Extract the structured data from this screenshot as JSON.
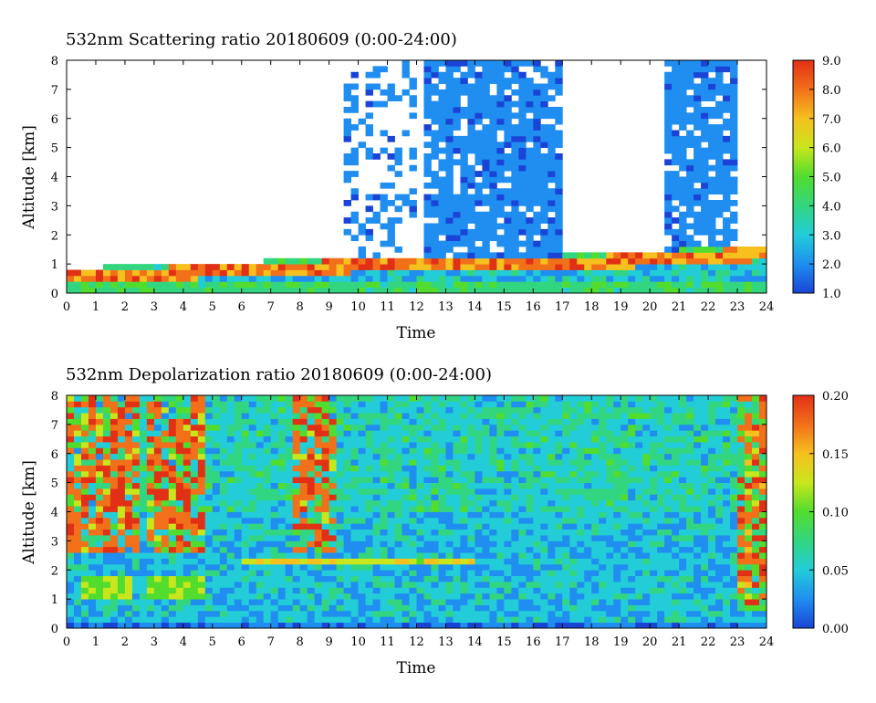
{
  "chart_data": [
    {
      "type": "heatmap",
      "title": "532nm Scattering ratio  20180609 (0:00-24:00)",
      "xlabel": "Time",
      "ylabel": "Altitude [km]",
      "xlim": [
        0,
        24
      ],
      "ylim": [
        0,
        8
      ],
      "xticks": [
        "0",
        "1",
        "2",
        "3",
        "4",
        "5",
        "6",
        "7",
        "8",
        "9",
        "10",
        "11",
        "12",
        "13",
        "14",
        "15",
        "16",
        "17",
        "18",
        "19",
        "20",
        "21",
        "22",
        "23",
        "24"
      ],
      "yticks": [
        "0",
        "1",
        "2",
        "3",
        "4",
        "5",
        "6",
        "7",
        "8"
      ],
      "colorbar": {
        "range": [
          1.0,
          9.0
        ],
        "ticks": [
          "1.0",
          "2.0",
          "3.0",
          "4.0",
          "5.0",
          "6.0",
          "7.0",
          "8.0",
          "9.0"
        ],
        "colormap": [
          "#1a44d6",
          "#1f8ef0",
          "#22cdd8",
          "#32d680",
          "#52dc2e",
          "#c8e61c",
          "#f6c01e",
          "#f2701a",
          "#e23016"
        ]
      },
      "features": {
        "no_data_color": "#ffffff",
        "low_layer_top_km": 1.0,
        "cloud_regions": [
          {
            "t": [
              12.2,
              17.0
            ],
            "alt": [
              0.6,
              8.0
            ]
          },
          {
            "t": [
              20.5,
              23.0
            ],
            "alt": [
              1.2,
              8.0
            ]
          }
        ]
      }
    },
    {
      "type": "heatmap",
      "title": "532nm Depolarization ratio  20180609 (0:00-24:00)",
      "xlabel": "Time",
      "ylabel": "Altitude [km]",
      "xlim": [
        0,
        24
      ],
      "ylim": [
        0,
        8
      ],
      "xticks": [
        "0",
        "1",
        "2",
        "3",
        "4",
        "5",
        "6",
        "7",
        "8",
        "9",
        "10",
        "11",
        "12",
        "13",
        "14",
        "15",
        "16",
        "17",
        "18",
        "19",
        "20",
        "21",
        "22",
        "23",
        "24"
      ],
      "yticks": [
        "0",
        "1",
        "2",
        "3",
        "4",
        "5",
        "6",
        "7",
        "8"
      ],
      "colorbar": {
        "range": [
          0.0,
          0.2
        ],
        "ticks": [
          "0.00",
          "0.05",
          "0.10",
          "0.15",
          "0.20"
        ],
        "colormap": [
          "#1a44d6",
          "#1f8ef0",
          "#22cdd8",
          "#32d680",
          "#52dc2e",
          "#c8e61c",
          "#f6c01e",
          "#f2701a",
          "#e23016"
        ]
      },
      "features": {
        "noisy_high_regions": [
          {
            "t": [
              0.0,
              2.6
            ],
            "alt": [
              2.5,
              8.0
            ]
          },
          {
            "t": [
              2.7,
              4.8
            ],
            "alt": [
              2.5,
              8.0
            ]
          },
          {
            "t": [
              7.8,
              9.2
            ],
            "alt": [
              2.5,
              8.0
            ]
          },
          {
            "t": [
              23.0,
              24.0
            ],
            "alt": [
              0.5,
              8.0
            ]
          }
        ],
        "aerosol_layers": [
          {
            "t": [
              0.5,
              2.2
            ],
            "alt": [
              0.9,
              1.8
            ]
          },
          {
            "t": [
              2.8,
              4.8
            ],
            "alt": [
              0.9,
              1.7
            ]
          },
          {
            "t": [
              8.0,
              9.0
            ],
            "alt": [
              0.9,
              1.3
            ]
          }
        ]
      }
    }
  ]
}
